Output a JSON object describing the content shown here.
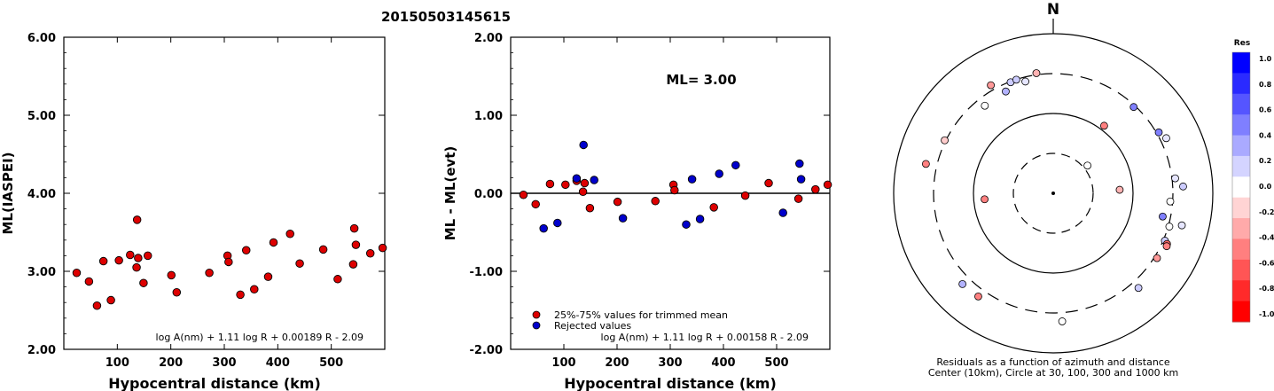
{
  "page_title": "20150503145615",
  "chart_data": [
    {
      "type": "scatter",
      "ylabel": "ML(IASPEI)",
      "xlabel": "Hypocentral distance (km)",
      "xlim": [
        0,
        600
      ],
      "ylim": [
        2.0,
        6.0
      ],
      "x_ticks": [
        100,
        200,
        300,
        400,
        500
      ],
      "y_ticks": [
        "2.00",
        "3.00",
        "4.00",
        "5.00",
        "6.00"
      ],
      "formula": "log A(nm) + 1.11 log R + 0.00189 R - 2.09",
      "color": "#dd0000",
      "points": [
        [
          24,
          2.98
        ],
        [
          47,
          2.87
        ],
        [
          62,
          2.56
        ],
        [
          74,
          3.13
        ],
        [
          88,
          2.63
        ],
        [
          103,
          3.14
        ],
        [
          124,
          3.21
        ],
        [
          136,
          3.05
        ],
        [
          137,
          3.66
        ],
        [
          139,
          3.17
        ],
        [
          149,
          2.85
        ],
        [
          157,
          3.2
        ],
        [
          201,
          2.95
        ],
        [
          211,
          2.73
        ],
        [
          272,
          2.98
        ],
        [
          306,
          3.2
        ],
        [
          308,
          3.12
        ],
        [
          330,
          2.7
        ],
        [
          341,
          3.27
        ],
        [
          356,
          2.77
        ],
        [
          382,
          2.93
        ],
        [
          392,
          3.37
        ],
        [
          423,
          3.48
        ],
        [
          441,
          3.1
        ],
        [
          485,
          3.28
        ],
        [
          512,
          2.9
        ],
        [
          541,
          3.09
        ],
        [
          543,
          3.55
        ],
        [
          546,
          3.34
        ],
        [
          573,
          3.23
        ],
        [
          596,
          3.3
        ]
      ]
    },
    {
      "type": "scatter",
      "ylabel": "ML - ML(evt)",
      "xlabel": "Hypocentral distance (km)",
      "xlim": [
        0,
        600
      ],
      "ylim": [
        -2.0,
        2.0
      ],
      "x_ticks": [
        100,
        200,
        300,
        400,
        500
      ],
      "y_ticks": [
        "-2.00",
        "-1.00",
        "0.00",
        "1.00",
        "2.00"
      ],
      "annotation": "ML= 3.00",
      "formula": "log A(nm) + 1.11 log R + 0.00158 R - 2.09",
      "legend": [
        {
          "label": "25%-75% values for trimmed mean",
          "color": "#dd0000"
        },
        {
          "label": "Rejected values",
          "color": "#0000cc"
        }
      ],
      "series": [
        {
          "name": "25%-75% values for trimmed mean",
          "color": "#dd0000",
          "points": [
            [
              24,
              -0.02
            ],
            [
              47,
              -0.14
            ],
            [
              74,
              0.12
            ],
            [
              103,
              0.11
            ],
            [
              124,
              0.16
            ],
            [
              136,
              0.02
            ],
            [
              139,
              0.13
            ],
            [
              149,
              -0.19
            ],
            [
              201,
              -0.11
            ],
            [
              272,
              -0.1
            ],
            [
              306,
              0.11
            ],
            [
              308,
              0.04
            ],
            [
              382,
              -0.18
            ],
            [
              441,
              -0.03
            ],
            [
              485,
              0.13
            ],
            [
              541,
              -0.07
            ],
            [
              573,
              0.05
            ],
            [
              596,
              0.11
            ]
          ]
        },
        {
          "name": "Rejected values",
          "color": "#0000cc",
          "points": [
            [
              62,
              -0.45
            ],
            [
              88,
              -0.38
            ],
            [
              124,
              0.19
            ],
            [
              137,
              0.62
            ],
            [
              157,
              0.17
            ],
            [
              211,
              -0.32
            ],
            [
              330,
              -0.4
            ],
            [
              341,
              0.18
            ],
            [
              356,
              -0.33
            ],
            [
              392,
              0.25
            ],
            [
              423,
              0.36
            ],
            [
              512,
              -0.25
            ],
            [
              543,
              0.38
            ],
            [
              546,
              0.18
            ]
          ]
        }
      ]
    },
    {
      "type": "scatter",
      "title": "N",
      "caption_line1": "Residuals as a function of azimuth and distance",
      "caption_line2": "Center (10km), Circle at 30, 100, 300 and 1000 km",
      "colorbar": {
        "title": "Res",
        "ticks": [
          "1.0",
          "0.8",
          "0.6",
          "0.4",
          "0.2",
          "0.0",
          "-0.2",
          "-0.4",
          "-0.6",
          "-0.8",
          "-1.0"
        ],
        "colors": [
          "#0000ff",
          "#2a2aff",
          "#5555ff",
          "#7f7fff",
          "#aaaaff",
          "#d4d4ff",
          "#ffffff",
          "#ffd4d4",
          "#ffaaaa",
          "#ff7f7f",
          "#ff5555",
          "#ff2a2a",
          "#ff0000"
        ]
      },
      "points": [
        {
          "azimuth": 283,
          "distance": 418,
          "residual": -0.5
        },
        {
          "azimuth": 296,
          "distance": 310,
          "residual": -0.2
        },
        {
          "azimuth": 322,
          "distance": 237,
          "residual": 0.0
        },
        {
          "azimuth": 330,
          "distance": 350,
          "residual": -0.4
        },
        {
          "azimuth": 339,
          "distance": 294,
          "residual": 0.2
        },
        {
          "azimuth": 335,
          "distance": 245,
          "residual": 0.3
        },
        {
          "azimuth": 346,
          "distance": 265,
          "residual": 0.1
        },
        {
          "azimuth": 342,
          "distance": 298,
          "residual": 0.2
        },
        {
          "azimuth": 352,
          "distance": 315,
          "residual": -0.3
        },
        {
          "azimuth": 37,
          "distance": 114,
          "residual": -0.5
        },
        {
          "azimuth": 51,
          "distance": 34,
          "residual": 0.0
        },
        {
          "azimuth": 87,
          "distance": 67,
          "residual": -0.3
        },
        {
          "azimuth": 265,
          "distance": 72,
          "residual": -0.5
        },
        {
          "azimuth": 43,
          "distance": 286,
          "residual": 0.5
        },
        {
          "azimuth": 60,
          "distance": 320,
          "residual": 0.5
        },
        {
          "azimuth": 64,
          "distance": 360,
          "residual": 0.1
        },
        {
          "azimuth": 83,
          "distance": 330,
          "residual": 0.1
        },
        {
          "azimuth": 87,
          "distance": 410,
          "residual": 0.2
        },
        {
          "azimuth": 94,
          "distance": 281,
          "residual": 0.0
        },
        {
          "azimuth": 104,
          "distance": 442,
          "residual": 0.1
        },
        {
          "azimuth": 106,
          "distance": 310,
          "residual": 0.0
        },
        {
          "azimuth": 102,
          "distance": 242,
          "residual": 0.5
        },
        {
          "azimuth": 113,
          "distance": 315,
          "residual": 0.2
        },
        {
          "azimuth": 114,
          "distance": 347,
          "residual": -0.6
        },
        {
          "azimuth": 115,
          "distance": 354,
          "residual": -0.5
        },
        {
          "azimuth": 122,
          "distance": 325,
          "residual": -0.4
        },
        {
          "azimuth": 138,
          "distance": 378,
          "residual": 0.2
        },
        {
          "azimuth": 176,
          "distance": 390,
          "residual": 0.0
        },
        {
          "azimuth": 216,
          "distance": 380,
          "residual": -0.5
        },
        {
          "azimuth": 225,
          "distance": 390,
          "residual": 0.3
        }
      ]
    }
  ]
}
